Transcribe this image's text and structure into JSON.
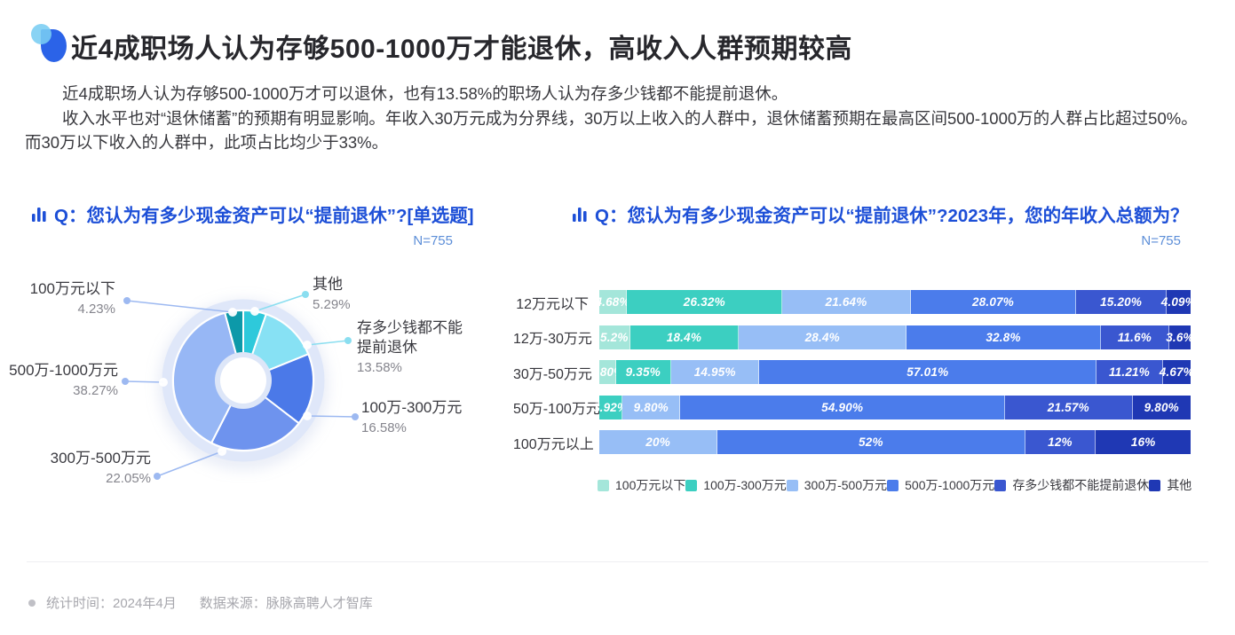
{
  "page": {
    "title": "近4成职场人认为存够500-1000万才能退休，高收入人群预期较高",
    "paragraphs": [
      "近4成职场人认为存够500-1000万才可以退休，也有13.58%的职场人认为存多少钱都不能提前退休。",
      "收入水平也对“退休储蓄”的预期有明显影响。年收入30万元成为分界线，30万以上收入的人群中，退休储蓄预期在最高区间500-1000万的人群占比超过50%。而30万以下收入的人群中，此项占比均少于33%。"
    ],
    "footer": {
      "stat_time": "统计时间：2024年4月",
      "source": "数据来源：脉脉高聘人才智库"
    },
    "colors": {
      "accent_blue": "#1d4fd7",
      "sample_blue": "#5c8ed8"
    }
  },
  "chart_data": [
    {
      "type": "pie",
      "donut": true,
      "title": "Q：您认为有多少现金资产可以“提前退休”?[单选题]",
      "sample_label": "N=755",
      "start_angle": "12-oclock, clockwise",
      "slices": [
        {
          "label": "其他",
          "value": 5.29,
          "display": "5.29%",
          "color": "#2ec9db"
        },
        {
          "label": "存多少钱都不能提前退休",
          "value": 13.58,
          "display": "13.58%",
          "color": "#87e1f4"
        },
        {
          "label": "100万-300万元",
          "value": 16.58,
          "display": "16.58%",
          "color": "#4b79e8"
        },
        {
          "label": "300万-500万元",
          "value": 22.05,
          "display": "22.05%",
          "color": "#6e93ee"
        },
        {
          "label": "500万-1000万元",
          "value": 38.27,
          "display": "38.27%",
          "color": "#97b7f5"
        },
        {
          "label": "100万元以下",
          "value": 4.23,
          "display": "4.23%",
          "color": "#0d99a9"
        }
      ]
    },
    {
      "type": "bar",
      "stacked": true,
      "orientation": "horizontal",
      "title": "Q：您认为有多少现金资产可以“提前退休”?2023年，您的年收入总额为？",
      "sample_label": "N=755",
      "xlim": [
        0,
        100
      ],
      "legend_position": "bottom",
      "categories": [
        "12万元以下",
        "12万-30万元",
        "30万-50万元",
        "50万-100万元",
        "100万元以上"
      ],
      "series": [
        {
          "name": "100万元以下",
          "color": "#a4e6da",
          "values": [
            4.68,
            5.2,
            2.8,
            0,
            0
          ],
          "labels": [
            "4.68%",
            "5.2%",
            "2.80%",
            "",
            ""
          ]
        },
        {
          "name": "100万-300万元",
          "color": "#3ccfc1",
          "values": [
            26.32,
            18.4,
            9.35,
            3.92,
            0
          ],
          "labels": [
            "26.32%",
            "18.4%",
            "9.35%",
            "3.92%",
            ""
          ]
        },
        {
          "name": "300万-500万元",
          "color": "#97bef6",
          "values": [
            21.64,
            28.4,
            14.95,
            9.8,
            20
          ],
          "labels": [
            "21.64%",
            "28.4%",
            "14.95%",
            "9.80%",
            "20%"
          ]
        },
        {
          "name": "500万-1000万元",
          "color": "#4b7ceb",
          "values": [
            28.07,
            32.8,
            57.01,
            54.9,
            52
          ],
          "labels": [
            "28.07%",
            "32.8%",
            "57.01%",
            "54.90%",
            "52%"
          ]
        },
        {
          "name": "存多少钱都不能提前退休",
          "color": "#3a57d0",
          "values": [
            15.2,
            11.6,
            11.21,
            21.57,
            12
          ],
          "labels": [
            "15.20%",
            "11.6%",
            "11.21%",
            "21.57%",
            "12%"
          ]
        },
        {
          "name": "其他",
          "color": "#1f38b4",
          "values": [
            4.09,
            3.6,
            4.67,
            9.8,
            16
          ],
          "labels": [
            "4.09%",
            "3.6%",
            "4.67%",
            "9.80%",
            "16%"
          ]
        }
      ]
    }
  ]
}
